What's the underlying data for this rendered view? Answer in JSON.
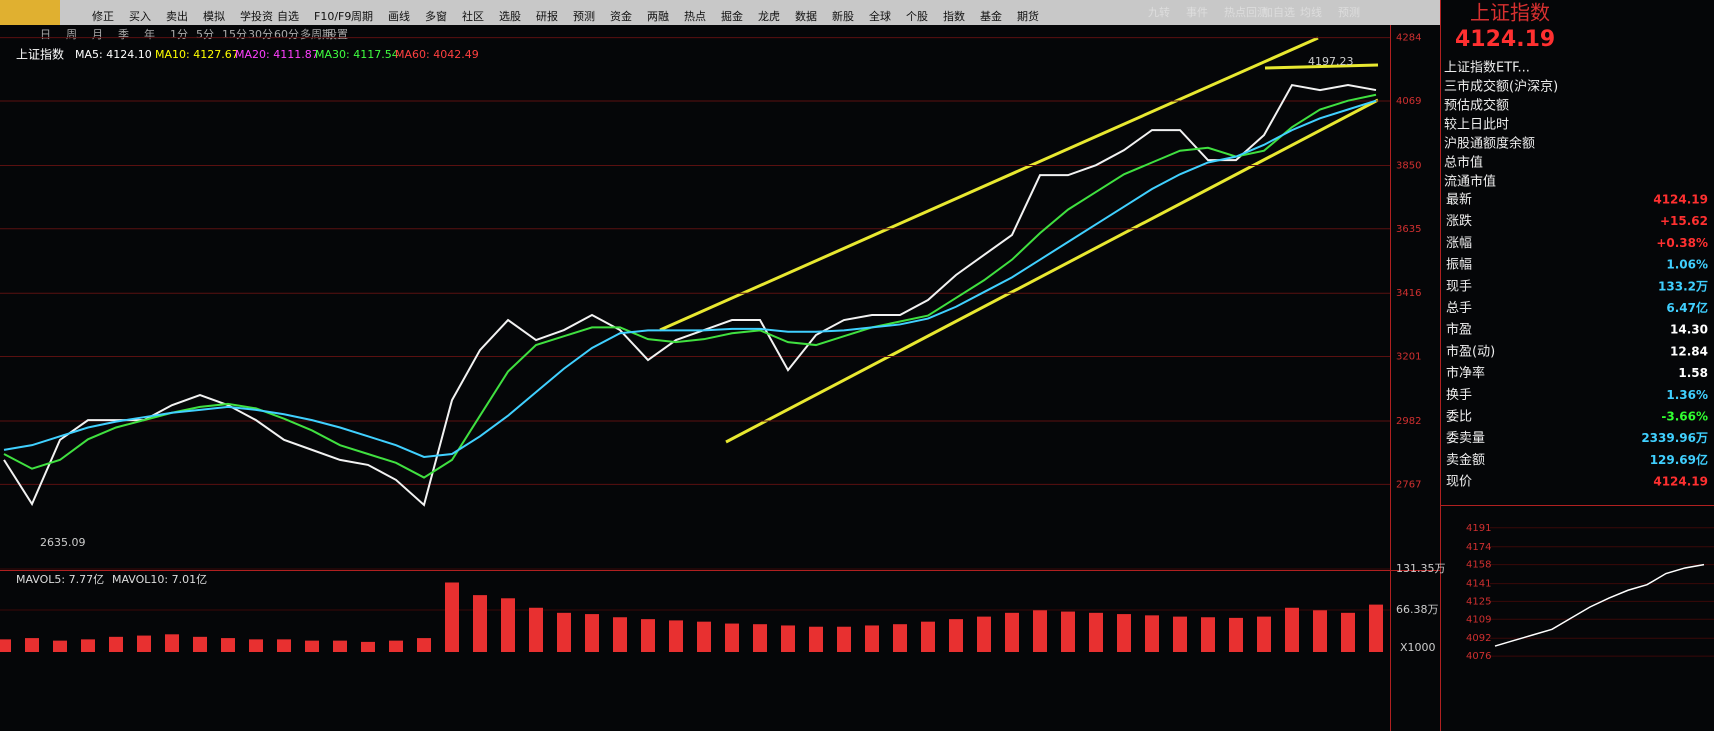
{
  "toolbar": {
    "items": [
      "修正",
      "买入",
      "卖出",
      "模拟",
      "学投资",
      "自选",
      "F10/F9",
      "周期",
      "画线",
      "多窗",
      "社区",
      "选股",
      "研报",
      "预测",
      "资金",
      "两融",
      "热点",
      "掘金",
      "龙虎",
      "数据",
      "新股",
      "全球",
      "个股",
      "指数",
      "基金",
      "期货"
    ],
    "right": [
      "九转",
      "事件",
      "热点回测",
      "加自选",
      "均线",
      "预测"
    ]
  },
  "periods": [
    "日",
    "周",
    "月",
    "季",
    "年",
    "1分",
    "5分",
    "15分",
    "30分",
    "60分",
    "多周期",
    "设置"
  ],
  "chart_data": {
    "type": "line",
    "title": "上证指数",
    "ma_labels": [
      {
        "text": "MA5: 4124.10",
        "color": "#ffffff"
      },
      {
        "text": "MA10: 4127.67",
        "color": "#ffff00"
      },
      {
        "text": "MA20: 4111.87",
        "color": "#ff40ff"
      },
      {
        "text": "MA30: 4117.54",
        "color": "#40ff40"
      },
      {
        "text": "MA60: 4042.49",
        "color": "#ff4040"
      }
    ],
    "ylim": [
      2510,
      4310
    ],
    "yticks": [
      4284,
      4069,
      3850,
      3635,
      3416,
      3201,
      2982,
      2767
    ],
    "series": [
      {
        "color": "#f2f2f2",
        "values": [
          2850,
          2700,
          2918,
          2985,
          2985,
          2985,
          3036,
          3070,
          3036,
          2985,
          2918,
          2884,
          2850,
          2833,
          2782,
          2697,
          3053,
          3223,
          3325,
          3257,
          3291,
          3342,
          3291,
          3189,
          3257,
          3291,
          3325,
          3325,
          3155,
          3274,
          3325,
          3342,
          3342,
          3393,
          3478,
          3546,
          3614,
          3817,
          3817,
          3851,
          3902,
          3970,
          3970,
          3868,
          3868,
          3953,
          4123,
          4106,
          4123,
          4106
        ]
      },
      {
        "color": "#40e040",
        "values": [
          2870,
          2820,
          2850,
          2920,
          2960,
          2985,
          3010,
          3030,
          3040,
          3025,
          2990,
          2950,
          2900,
          2870,
          2840,
          2790,
          2850,
          3000,
          3150,
          3240,
          3270,
          3300,
          3300,
          3260,
          3250,
          3260,
          3280,
          3290,
          3250,
          3240,
          3270,
          3300,
          3320,
          3340,
          3400,
          3460,
          3530,
          3620,
          3700,
          3760,
          3820,
          3860,
          3900,
          3910,
          3880,
          3900,
          3980,
          4040,
          4070,
          4090
        ]
      },
      {
        "color": "#40d0ff",
        "values": [
          2884,
          2900,
          2930,
          2960,
          2980,
          2995,
          3010,
          3020,
          3030,
          3020,
          3005,
          2985,
          2960,
          2930,
          2900,
          2860,
          2870,
          2930,
          3000,
          3080,
          3160,
          3230,
          3280,
          3290,
          3290,
          3290,
          3295,
          3295,
          3285,
          3285,
          3290,
          3300,
          3310,
          3330,
          3370,
          3420,
          3470,
          3530,
          3590,
          3650,
          3710,
          3770,
          3820,
          3860,
          3880,
          3920,
          3970,
          4010,
          4040,
          4070
        ]
      }
    ],
    "annotations": [
      "2635.09",
      "4197.23"
    ],
    "volume": {
      "ylim": [
        0,
        131.35
      ],
      "yticks": [
        {
          "value": 131.35,
          "label": "131.35万"
        },
        {
          "value": 66.38,
          "label": "66.38万"
        }
      ],
      "unit_label": "X1000",
      "legend": [
        "MAVOL5: 7.77亿",
        "MAVOL10: 7.01亿"
      ],
      "color": "#e83030",
      "values": [
        20,
        22,
        18,
        20,
        24,
        26,
        28,
        24,
        22,
        20,
        20,
        18,
        18,
        16,
        18,
        22,
        110,
        90,
        85,
        70,
        62,
        60,
        55,
        52,
        50,
        48,
        45,
        44,
        42,
        40,
        40,
        42,
        44,
        48,
        52,
        56,
        62,
        66,
        64,
        62,
        60,
        58,
        56,
        55,
        54,
        56,
        70,
        66,
        62,
        75
      ]
    }
  },
  "quote_panel": {
    "title": "上证指数",
    "price": "4124.19",
    "links": [
      "上证指数ETF...",
      "三市成交额(沪深京)",
      "预估成交额",
      "较上日此时",
      "沪股通额度余额",
      "总市值",
      "流通市值"
    ],
    "rows": [
      {
        "label": "最新",
        "value": "4124.19",
        "color": "#ff3030"
      },
      {
        "label": "涨跌",
        "value": "+15.62",
        "color": "#ff3030"
      },
      {
        "label": "涨幅",
        "value": "+0.38%",
        "color": "#ff3030"
      },
      {
        "label": "振幅",
        "value": "1.06%",
        "color": "#40d0ff"
      },
      {
        "label": "现手",
        "value": "133.2万",
        "color": "#40d0ff"
      },
      {
        "label": "总手",
        "value": "6.47亿",
        "color": "#40d0ff"
      },
      {
        "label": "市盈",
        "value": "14.30",
        "color": "#ffffff"
      },
      {
        "label": "市盈(动)",
        "value": "12.84",
        "color": "#ffffff"
      },
      {
        "label": "市净率",
        "value": "1.58",
        "color": "#ffffff"
      },
      {
        "label": "换手",
        "value": "1.36%",
        "color": "#40d0ff"
      },
      {
        "label": "委比",
        "value": "-3.66%",
        "color": "#30ff30"
      },
      {
        "label": "委卖量",
        "value": "2339.96万",
        "color": "#40d0ff"
      },
      {
        "label": "卖金额",
        "value": "129.69亿",
        "color": "#40d0ff"
      },
      {
        "label": "现价",
        "value": "4124.19",
        "color": "#ff3030"
      }
    ],
    "mini_chart": {
      "ylim": [
        4068,
        4198
      ],
      "yticks": [
        4191,
        4174,
        4158,
        4141,
        4125,
        4109,
        4092,
        4076
      ],
      "color": "#ffffff",
      "values": [
        4085,
        4090,
        4095,
        4100,
        4110,
        4120,
        4128,
        4135,
        4140,
        4150,
        4155,
        4158
      ]
    }
  }
}
